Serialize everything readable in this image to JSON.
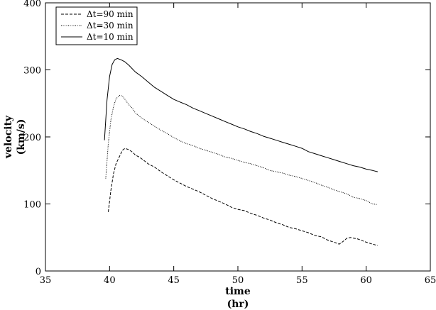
{
  "chart_data": {
    "type": "line",
    "title": "",
    "xlabel": "time",
    "xunit": "(hr)",
    "ylabel": "velocity",
    "yunit": "(km/s)",
    "xlim": [
      35,
      65
    ],
    "ylim": [
      0,
      400
    ],
    "xticks": [
      35,
      40,
      45,
      50,
      55,
      60,
      65
    ],
    "yticks": [
      0,
      100,
      200,
      300,
      400
    ],
    "grid": false,
    "legend_position": "top-left",
    "series": [
      {
        "name": "Δt=90 min",
        "dash": "dashed",
        "x": [
          39.9,
          40.1,
          40.3,
          40.5,
          40.8,
          41.0,
          41.2,
          41.5,
          41.8,
          42.0,
          42.3,
          42.6,
          43.0,
          43.5,
          44.0,
          44.5,
          45.0,
          45.5,
          46.0,
          46.5,
          47.0,
          47.5,
          48.0,
          48.5,
          49.0,
          49.5,
          50.0,
          50.5,
          51.0,
          51.5,
          52.0,
          52.5,
          53.0,
          53.5,
          54.0,
          54.5,
          55.0,
          55.5,
          56.0,
          56.5,
          57.0,
          57.5,
          57.9,
          58.2,
          58.5,
          58.8,
          59.0,
          59.3,
          59.6,
          60.0,
          60.5,
          60.9
        ],
        "y": [
          88,
          120,
          145,
          160,
          172,
          180,
          183,
          181,
          177,
          173,
          170,
          166,
          160,
          155,
          148,
          142,
          136,
          131,
          126,
          122,
          118,
          113,
          108,
          104,
          100,
          95,
          92,
          90,
          86,
          83,
          79,
          76,
          72,
          69,
          65,
          63,
          60,
          57,
          53,
          51,
          46,
          43,
          40,
          44,
          49,
          50,
          49,
          48,
          46,
          43,
          40,
          38
        ]
      },
      {
        "name": "Δt=30 min",
        "dash": "dotted",
        "x": [
          39.7,
          39.9,
          40.1,
          40.3,
          40.5,
          40.8,
          41.0,
          41.2,
          41.5,
          41.8,
          42.0,
          42.5,
          43.0,
          43.5,
          44.0,
          44.5,
          45.0,
          45.5,
          46.0,
          46.5,
          47.0,
          47.5,
          48.0,
          48.5,
          49.0,
          49.5,
          50.0,
          50.5,
          51.0,
          51.5,
          52.0,
          52.5,
          53.0,
          53.5,
          54.0,
          54.5,
          55.0,
          55.5,
          56.0,
          56.5,
          57.0,
          57.5,
          58.0,
          58.5,
          59.0,
          59.5,
          60.0,
          60.5,
          60.9
        ],
        "y": [
          138,
          190,
          225,
          245,
          257,
          262,
          261,
          256,
          248,
          242,
          236,
          228,
          222,
          216,
          210,
          205,
          199,
          194,
          190,
          187,
          183,
          180,
          177,
          174,
          170,
          168,
          165,
          162,
          160,
          157,
          154,
          150,
          148,
          146,
          143,
          141,
          138,
          135,
          132,
          128,
          125,
          121,
          118,
          115,
          110,
          108,
          105,
          100,
          99
        ]
      },
      {
        "name": "Δt=10 min",
        "dash": "solid",
        "x": [
          39.6,
          39.8,
          40.0,
          40.2,
          40.4,
          40.6,
          40.9,
          41.2,
          41.5,
          41.8,
          42.0,
          42.5,
          43.0,
          43.5,
          44.0,
          44.5,
          45.0,
          45.5,
          46.0,
          46.5,
          47.0,
          47.5,
          48.0,
          48.5,
          49.0,
          49.5,
          50.0,
          50.5,
          51.0,
          51.5,
          52.0,
          52.5,
          53.0,
          53.5,
          54.0,
          54.5,
          55.0,
          55.5,
          56.0,
          56.5,
          57.0,
          57.5,
          58.0,
          58.5,
          59.0,
          59.5,
          60.0,
          60.5,
          60.9
        ],
        "y": [
          195,
          255,
          290,
          308,
          315,
          317,
          315,
          312,
          307,
          301,
          297,
          290,
          282,
          274,
          268,
          262,
          256,
          252,
          248,
          243,
          239,
          235,
          231,
          227,
          223,
          219,
          215,
          212,
          208,
          205,
          201,
          198,
          195,
          192,
          189,
          186,
          183,
          178,
          175,
          172,
          169,
          166,
          163,
          160,
          157,
          155,
          152,
          150,
          148
        ]
      }
    ]
  }
}
